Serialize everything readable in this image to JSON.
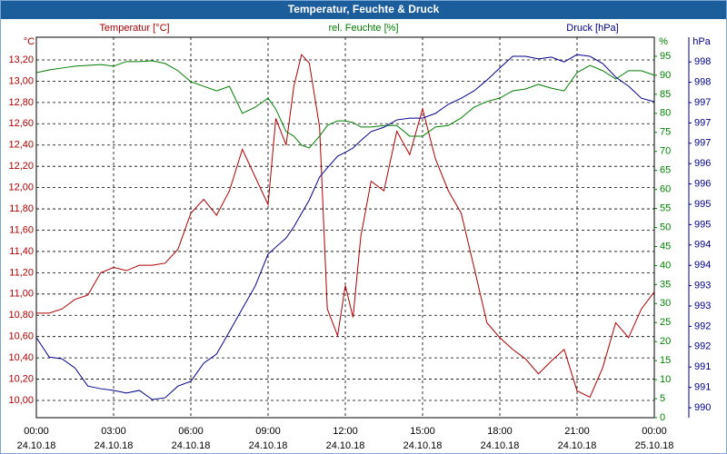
{
  "chart_data": {
    "type": "line",
    "title": "Temperatur, Feuchte & Druck",
    "x": [
      0,
      0.5,
      1,
      1.5,
      2,
      2.5,
      3,
      3.5,
      4,
      4.5,
      5,
      5.5,
      6,
      6.5,
      7,
      7.5,
      8,
      8.5,
      9,
      9.3,
      9.7,
      10,
      10.3,
      10.6,
      11,
      11.3,
      11.7,
      12,
      12.3,
      12.6,
      13,
      13.5,
      14,
      14.5,
      15,
      15.5,
      16,
      16.5,
      17,
      17.5,
      18,
      18.5,
      19,
      19.5,
      20,
      20.5,
      21,
      21.5,
      22,
      22.5,
      23,
      23.5,
      24
    ],
    "xlim": [
      0,
      24
    ],
    "xticks": [
      {
        "value": 0,
        "label": "00:00"
      },
      {
        "value": 3,
        "label": "03:00"
      },
      {
        "value": 6,
        "label": "06:00"
      },
      {
        "value": 9,
        "label": "09:00"
      },
      {
        "value": 12,
        "label": "12:00"
      },
      {
        "value": 15,
        "label": "15:00"
      },
      {
        "value": 18,
        "label": "18:00"
      },
      {
        "value": 21,
        "label": "21:00"
      },
      {
        "value": 24,
        "label": "00:00"
      }
    ],
    "xtick_dates": [
      "24.10.18",
      "24.10.18",
      "24.10.18",
      "24.10.18",
      "24.10.18",
      "24.10.18",
      "24.10.18",
      "24.10.18",
      "25.10.18"
    ],
    "y_unit": "°C",
    "y2_unit": "%",
    "y3_unit": "hPa",
    "ylim": [
      9.838,
      13.413
    ],
    "yticks": [
      {
        "value": 10.0,
        "label": "10,00"
      },
      {
        "value": 10.2,
        "label": "10,20"
      },
      {
        "value": 10.4,
        "label": "10,40"
      },
      {
        "value": 10.6,
        "label": "10,60"
      },
      {
        "value": 10.8,
        "label": "10,80"
      },
      {
        "value": 11.0,
        "label": "11,00"
      },
      {
        "value": 11.2,
        "label": "11,20"
      },
      {
        "value": 11.4,
        "label": "11,40"
      },
      {
        "value": 11.6,
        "label": "11,60"
      },
      {
        "value": 11.8,
        "label": "11,80"
      },
      {
        "value": 12.0,
        "label": "12,00"
      },
      {
        "value": 12.2,
        "label": "12,20"
      },
      {
        "value": 12.4,
        "label": "12,40"
      },
      {
        "value": 12.6,
        "label": "12,60"
      },
      {
        "value": 12.8,
        "label": "12,80"
      },
      {
        "value": 13.0,
        "label": "13,00"
      },
      {
        "value": 13.2,
        "label": "13,20"
      }
    ],
    "y2lim": [
      0,
      100
    ],
    "y2ticks": [
      0,
      5,
      10,
      15,
      20,
      25,
      30,
      35,
      40,
      45,
      50,
      55,
      60,
      65,
      70,
      75,
      80,
      85,
      90,
      95
    ],
    "y3lim": [
      990.17,
      998.96
    ],
    "y3ticks": [
      {
        "value": 990.4,
        "label": "990"
      },
      {
        "value": 990.87,
        "label": "991"
      },
      {
        "value": 991.34,
        "label": "991"
      },
      {
        "value": 991.81,
        "label": "992"
      },
      {
        "value": 992.28,
        "label": "992"
      },
      {
        "value": 992.75,
        "label": "993"
      },
      {
        "value": 993.22,
        "label": "993"
      },
      {
        "value": 993.69,
        "label": "994"
      },
      {
        "value": 994.16,
        "label": "994"
      },
      {
        "value": 994.63,
        "label": "995"
      },
      {
        "value": 995.1,
        "label": "995"
      },
      {
        "value": 995.57,
        "label": "996"
      },
      {
        "value": 996.04,
        "label": "996"
      },
      {
        "value": 996.51,
        "label": "997"
      },
      {
        "value": 996.98,
        "label": "997"
      },
      {
        "value": 997.45,
        "label": "997"
      },
      {
        "value": 997.92,
        "label": "998"
      },
      {
        "value": 998.39,
        "label": "998"
      }
    ],
    "grid": true,
    "series": [
      {
        "name": "Temperatur [°C]",
        "color": "#b00000",
        "axis": "y",
        "values": [
          10.82,
          10.82,
          10.86,
          10.95,
          10.99,
          11.2,
          11.25,
          11.22,
          11.27,
          11.27,
          11.29,
          11.42,
          11.76,
          11.89,
          11.74,
          11.97,
          12.36,
          12.1,
          11.84,
          12.65,
          12.4,
          12.95,
          13.25,
          13.17,
          12.57,
          10.86,
          10.61,
          11.08,
          10.78,
          11.54,
          12.06,
          11.97,
          12.53,
          12.31,
          12.74,
          12.27,
          11.97,
          11.76,
          11.25,
          10.73,
          10.59,
          10.48,
          10.39,
          10.25,
          10.37,
          10.48,
          10.09,
          10.03,
          10.31,
          10.73,
          10.59,
          10.86,
          11.02
        ]
      },
      {
        "name": "rel. Feuchte [%]",
        "color": "#008000",
        "axis": "y2",
        "values": [
          90.7,
          91.4,
          91.9,
          92.4,
          92.6,
          92.8,
          92.4,
          93.6,
          93.6,
          93.8,
          93.1,
          91.2,
          88.3,
          87.1,
          85.9,
          87.1,
          80.0,
          81.6,
          84.0,
          81.1,
          75.2,
          74.0,
          71.6,
          70.9,
          74.0,
          76.8,
          78.0,
          78.0,
          77.6,
          76.4,
          76.4,
          76.8,
          76.8,
          74.0,
          74.0,
          76.4,
          76.8,
          78.8,
          81.6,
          83.1,
          84.0,
          85.9,
          86.4,
          87.6,
          86.6,
          85.9,
          90.7,
          92.6,
          91.2,
          89.0,
          91.2,
          91.2,
          90.0
        ]
      },
      {
        "name": "Druck [hPa]",
        "color": "#00008b",
        "axis": "y3",
        "values": [
          992.02,
          991.57,
          991.53,
          991.32,
          990.9,
          990.84,
          990.8,
          990.74,
          990.8,
          990.59,
          990.63,
          990.9,
          991.01,
          991.43,
          991.64,
          992.16,
          992.69,
          993.21,
          993.95,
          994.11,
          994.32,
          994.58,
          994.89,
          995.2,
          995.73,
          995.94,
          996.21,
          996.3,
          996.4,
          996.57,
          996.78,
          996.88,
          997.05,
          997.09,
          997.09,
          997.2,
          997.41,
          997.55,
          997.72,
          997.97,
          998.25,
          998.52,
          998.52,
          998.46,
          998.5,
          998.39,
          998.56,
          998.52,
          998.35,
          998.04,
          997.83,
          997.55,
          997.47
        ]
      }
    ]
  }
}
